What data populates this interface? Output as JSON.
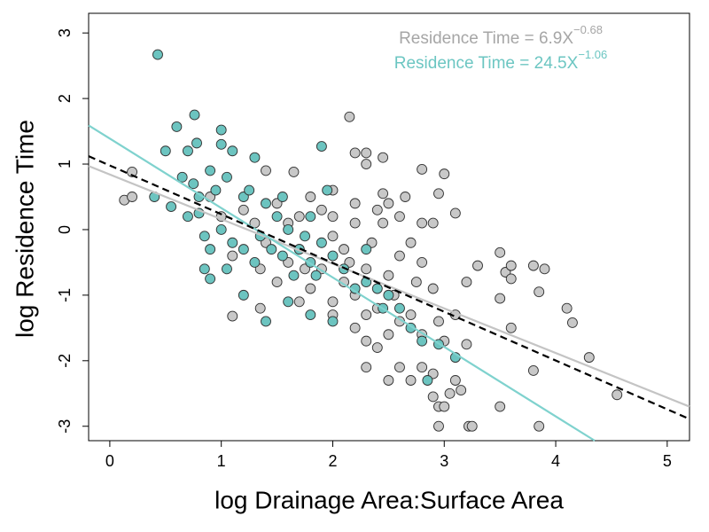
{
  "chart_data": {
    "type": "scatter",
    "xlabel": "log Drainage Area:Surface Area",
    "ylabel": "log Residence Time",
    "xlim": [
      -0.19,
      5.2
    ],
    "ylim": [
      -3.22,
      3.3
    ],
    "xticks": [
      0,
      1,
      2,
      3,
      4,
      5
    ],
    "yticks": [
      -3,
      -2,
      -1,
      0,
      1,
      2,
      3
    ],
    "annotations": [
      {
        "text": "Residence Time = 6.9X",
        "superscript": "−0.68",
        "color": "#a6a6a6"
      },
      {
        "text": "Residence Time = 24.5X",
        "superscript": "−1.06",
        "color": "#6cc6c2"
      }
    ],
    "lines": [
      {
        "color": "#c4c4c4",
        "dash": false,
        "x": [
          -0.19,
          5.2
        ],
        "values": [
          0.97,
          -2.7
        ]
      },
      {
        "color": "#7fd2ce",
        "dash": false,
        "x": [
          -0.19,
          4.35
        ],
        "values": [
          1.59,
          -3.22
        ]
      },
      {
        "color": "#000000",
        "dash": true,
        "x": [
          -0.19,
          5.2
        ],
        "values": [
          1.12,
          -2.89
        ]
      }
    ],
    "series": [
      {
        "color": "#c8c8c8",
        "x": [
          0.13,
          0.2,
          0.2,
          1.1,
          1.35,
          1.4,
          1.65,
          2.15,
          2.2,
          2.3,
          2.3,
          2.45,
          2.8,
          3.0,
          2.95,
          3.1,
          2.9,
          3.2,
          3.3,
          3.5,
          3.55,
          3.6,
          3.6,
          3.8,
          3.9,
          3.85,
          3.5,
          3.6,
          4.15,
          4.1,
          4.3,
          4.55,
          3.5,
          3.8,
          3.85,
          3.22,
          3.25,
          2.95,
          2.95,
          3.0,
          3.05,
          3.1,
          3.15,
          2.9,
          2.7,
          2.5,
          2.3,
          2.6,
          2.8,
          2.9,
          3.0,
          3.2,
          2.95,
          3.1,
          2.2,
          2.3,
          2.4,
          2.5,
          2.6,
          2.7,
          2.4,
          2.2,
          2.1,
          2.3,
          2.5,
          2.6,
          2.7,
          2.8,
          2.5,
          2.4,
          2.6,
          2.2,
          2.1,
          1.9,
          1.8,
          1.7,
          2.0,
          1.9,
          1.7,
          1.5,
          1.6,
          1.4,
          1.3,
          1.2,
          1.0,
          0.9,
          1.1,
          1.5,
          1.8,
          2.0,
          2.2,
          2.45,
          2.65,
          2.8,
          2.9,
          2.8,
          2.3,
          2.0,
          1.7,
          2.35,
          2.0,
          1.6,
          1.35,
          2.55,
          2.75,
          2.45,
          2.0,
          1.75,
          2.15
        ],
        "values": [
          0.45,
          0.5,
          0.88,
          -1.32,
          -1.2,
          0.9,
          0.88,
          1.72,
          1.17,
          1.17,
          1.0,
          1.1,
          0.92,
          0.85,
          0.55,
          0.25,
          0.1,
          -0.8,
          -0.55,
          -0.35,
          -0.65,
          -0.75,
          -0.55,
          -0.55,
          -0.6,
          -0.95,
          -1.05,
          -1.5,
          -1.42,
          -1.2,
          -1.95,
          -2.52,
          -2.7,
          -2.15,
          -3.0,
          -3.0,
          -3.0,
          -3.0,
          -2.7,
          -2.7,
          -2.5,
          -2.3,
          -2.45,
          -2.55,
          -2.3,
          -2.3,
          -2.1,
          -2.1,
          -2.1,
          -2.2,
          -1.7,
          -1.75,
          -1.4,
          -1.3,
          -1.5,
          -1.7,
          -1.8,
          -1.6,
          -1.4,
          -1.3,
          -1.2,
          -1.0,
          -0.8,
          -0.6,
          -0.7,
          -0.4,
          -0.2,
          0.1,
          0.4,
          0.3,
          0.2,
          0.1,
          -0.3,
          -0.6,
          -0.9,
          -1.1,
          -1.3,
          0.3,
          0.2,
          0.4,
          0.1,
          -0.2,
          0.1,
          0.3,
          0.2,
          0.5,
          -0.4,
          -0.8,
          0.5,
          0.6,
          0.4,
          0.55,
          0.5,
          -0.5,
          -0.9,
          -1.6,
          -1.3,
          -1.1,
          -0.3,
          -0.2,
          -0.1,
          -0.5,
          -0.6,
          -1.0,
          -0.8,
          0.1,
          0.2,
          -0.6,
          -0.5
        ]
      },
      {
        "color": "#6cc4c0",
        "x": [
          0.43,
          0.6,
          0.76,
          0.7,
          0.78,
          0.5,
          1.0,
          1.0,
          1.1,
          1.3,
          1.9,
          0.65,
          0.75,
          0.8,
          0.55,
          0.4,
          0.9,
          0.95,
          1.05,
          1.2,
          1.4,
          1.5,
          0.7,
          0.85,
          0.9,
          0.85,
          0.9,
          1.05,
          1.1,
          1.2,
          1.3,
          1.35,
          1.45,
          1.55,
          1.6,
          1.7,
          1.75,
          1.8,
          1.85,
          1.9,
          2.0,
          2.1,
          2.2,
          2.3,
          2.4,
          1.8,
          1.95,
          1.2,
          1.4,
          1.6,
          1.8,
          2.0,
          2.45,
          2.6,
          2.7,
          2.8,
          2.85,
          2.95,
          3.1,
          2.5,
          2.3,
          1.25,
          1.55,
          1.0,
          0.8,
          1.65
        ],
        "values": [
          2.67,
          1.57,
          1.75,
          1.2,
          1.32,
          1.2,
          1.52,
          1.3,
          1.2,
          1.1,
          1.27,
          0.8,
          0.7,
          0.5,
          0.35,
          0.5,
          0.9,
          0.6,
          0.8,
          0.5,
          0.4,
          0.2,
          0.2,
          -0.1,
          -0.3,
          -0.6,
          -0.75,
          -0.6,
          -0.2,
          -0.3,
          -0.5,
          -0.1,
          -0.3,
          -0.4,
          0.0,
          -0.3,
          -0.1,
          -0.5,
          -0.7,
          -0.2,
          -0.4,
          -0.6,
          -0.9,
          -0.8,
          -0.9,
          0.2,
          0.6,
          -1.0,
          -1.4,
          -1.1,
          -1.3,
          -1.4,
          -1.2,
          -1.2,
          -1.5,
          -1.7,
          -2.3,
          -1.75,
          -1.95,
          -1.0,
          -0.3,
          0.6,
          0.5,
          0.0,
          0.25,
          -0.7
        ]
      }
    ]
  }
}
